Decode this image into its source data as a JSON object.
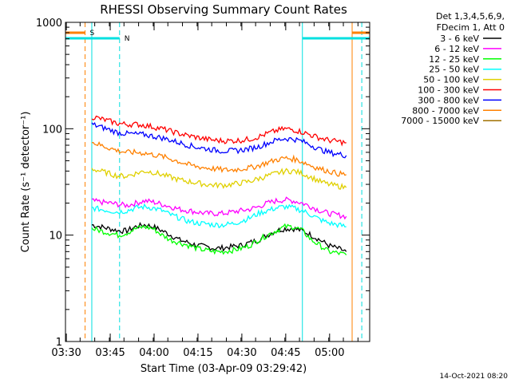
{
  "chart_data": {
    "type": "line",
    "title": "RHESSI Observing Summary Count Rates",
    "xlabel": "Start Time (03-Apr-09 03:29:42)",
    "ylabel": "Count Rate (s⁻¹ detector⁻¹)",
    "x_ticks": [
      "03:30",
      "03:45",
      "04:00",
      "04:15",
      "04:30",
      "04:45",
      "05:00"
    ],
    "x_tick_minutes": [
      0.3,
      15.3,
      30.3,
      45.3,
      60.3,
      75.3,
      90.3
    ],
    "xlim_minutes": [
      0,
      104
    ],
    "y_scale": "log",
    "ylim": [
      1,
      1000
    ],
    "y_ticks": [
      1,
      10,
      100,
      1000
    ],
    "y_tick_labels": [
      "1",
      "10",
      "100",
      "1000"
    ],
    "legend_header": [
      "Det 1,3,4,5,6,9,",
      "FDecim 1, Att 0"
    ],
    "legend_position": "right",
    "timestamp": "14-Oct-2021 08:20",
    "flags": [
      {
        "label": "S",
        "color": "#ff8000",
        "start_min": 0,
        "end_min": 6.7,
        "end_min2": 98,
        "end_min2_to": 104
      },
      {
        "label": "N",
        "color": "#00e0e0",
        "start_min": 0,
        "end_min": 18.5,
        "start_min2": 81,
        "end_min2": 104
      }
    ],
    "vlines": [
      {
        "minute": 6.7,
        "color": "#ff8000",
        "dash": true
      },
      {
        "minute": 18.5,
        "color": "#00e0e0",
        "dash": true
      },
      {
        "minute": 9.0,
        "color": "#00e0e0",
        "dash": false
      },
      {
        "minute": 81.0,
        "color": "#00e0e0",
        "dash": false
      },
      {
        "minute": 98.0,
        "color": "#ff8000",
        "dash": false
      },
      {
        "minute": 101.3,
        "color": "#00e0e0",
        "dash": true
      }
    ],
    "x_minutes": [
      9,
      12,
      15,
      18,
      21,
      24,
      27,
      30,
      33,
      36,
      39,
      42,
      45,
      48,
      51,
      54,
      57,
      60,
      63,
      66,
      69,
      72,
      75,
      78,
      81,
      84,
      87,
      90,
      93,
      96
    ],
    "series": [
      {
        "name": "3 - 6 keV",
        "color": "#000000",
        "values": [
          12.5,
          12,
          11.5,
          11,
          11,
          12,
          12.5,
          12,
          11,
          10,
          9,
          8.5,
          8,
          7.8,
          7.5,
          7.6,
          7.8,
          8,
          8.5,
          9,
          10,
          11,
          11.5,
          11.5,
          11,
          10,
          9,
          8,
          7.5,
          7
        ]
      },
      {
        "name": "6 - 12 keV",
        "color": "#ff00ff",
        "values": [
          21,
          20.5,
          20,
          19.5,
          19,
          20,
          21,
          20.5,
          19.5,
          18.5,
          17.5,
          17,
          16.5,
          16,
          16,
          16,
          16.5,
          17,
          17.5,
          18.5,
          20,
          21,
          21.5,
          21,
          20,
          18.5,
          17,
          16,
          15.5,
          15
        ]
      },
      {
        "name": "12 - 25 keV",
        "color": "#00ff00",
        "values": [
          11.5,
          11,
          10.5,
          10,
          10.5,
          11.5,
          12,
          11.5,
          10,
          9,
          8.5,
          8,
          7.5,
          7.2,
          7,
          7,
          7.2,
          7.5,
          8,
          9,
          10,
          11,
          12,
          12,
          11,
          9,
          8,
          7,
          6.8,
          6.5
        ]
      },
      {
        "name": "25 - 50 keV",
        "color": "#00ffff",
        "values": [
          18,
          17.5,
          17,
          16.5,
          17,
          18,
          18.5,
          18,
          17,
          15.5,
          14.5,
          13.5,
          13,
          12.8,
          12.5,
          12.5,
          12.8,
          13.5,
          14.5,
          16,
          17,
          18,
          18.5,
          18,
          17,
          15.5,
          14,
          13,
          12.5,
          12
        ]
      },
      {
        "name": "50 - 100 keV",
        "color": "#e0d000",
        "values": [
          42,
          40,
          38,
          36,
          36,
          38,
          40,
          39,
          37,
          35,
          33,
          32,
          31,
          30,
          29.5,
          29.5,
          30,
          31,
          32,
          34,
          36,
          38,
          40,
          40,
          38,
          35,
          32,
          30,
          29,
          28
        ]
      },
      {
        "name": "100 - 300 keV",
        "color": "#ff0000",
        "values": [
          130,
          124,
          118,
          112,
          110,
          110,
          108,
          104,
          100,
          95,
          90,
          86,
          83,
          80,
          78,
          77,
          77,
          78,
          80,
          84,
          90,
          96,
          100,
          98,
          93,
          87,
          82,
          78,
          76,
          74
        ]
      },
      {
        "name": "300 - 800 keV",
        "color": "#0000ff",
        "values": [
          110,
          104,
          98,
          92,
          90,
          89,
          88,
          85,
          82,
          78,
          74,
          70,
          67,
          65,
          63,
          62,
          62,
          63,
          65,
          68,
          73,
          78,
          81,
          80,
          76,
          70,
          64,
          60,
          58,
          56
        ]
      },
      {
        "name": "800 - 7000 keV",
        "color": "#ff8000",
        "values": [
          75,
          70,
          66,
          62,
          60,
          60,
          59,
          57,
          55,
          52,
          49,
          46,
          44,
          43,
          42,
          41,
          41,
          42,
          43,
          45,
          48,
          51,
          53,
          52,
          49,
          45,
          42,
          40,
          38,
          37
        ]
      },
      {
        "name": "7000 - 15000 keV",
        "color": "#a07000",
        "values": []
      }
    ]
  }
}
